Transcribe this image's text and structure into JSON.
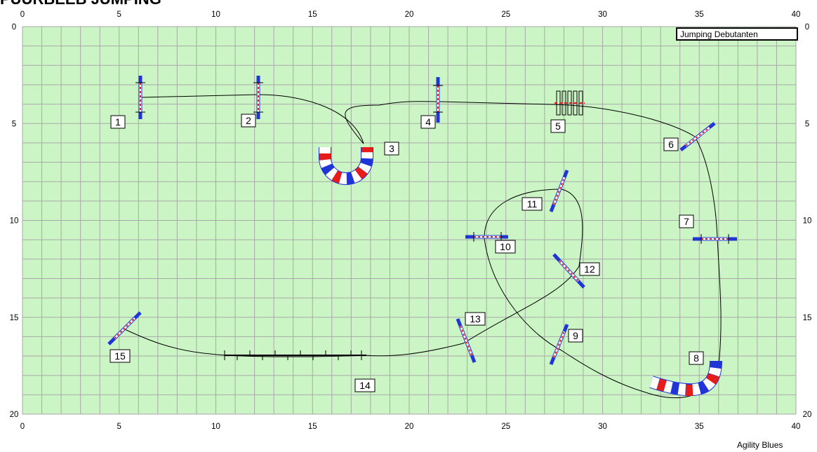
{
  "page": {
    "title": "PUURBEEB JUMPING",
    "footer": "Agility Blues",
    "course_label": "Jumping Debutanten"
  },
  "axes": {
    "x_ticks": [
      "0",
      "5",
      "10",
      "15",
      "20",
      "25",
      "30",
      "35",
      "40"
    ],
    "y_ticks": [
      "0",
      "5",
      "10",
      "15",
      "20"
    ],
    "x_range": [
      0,
      40
    ],
    "y_range": [
      0,
      20
    ]
  },
  "colors": {
    "field": "#ccf5c5",
    "grid": "#a8a8a8",
    "jump_blue": "#1f35d8",
    "jump_red": "#e81b1b",
    "path": "#000000"
  },
  "obstacles": [
    {
      "number": "1",
      "type": "jump"
    },
    {
      "number": "2",
      "type": "jump"
    },
    {
      "number": "3",
      "type": "tunnel"
    },
    {
      "number": "4",
      "type": "jump"
    },
    {
      "number": "5",
      "type": "tire"
    },
    {
      "number": "6",
      "type": "jump"
    },
    {
      "number": "7",
      "type": "jump"
    },
    {
      "number": "8",
      "type": "tunnel"
    },
    {
      "number": "9",
      "type": "jump"
    },
    {
      "number": "10",
      "type": "jump"
    },
    {
      "number": "11",
      "type": "jump"
    },
    {
      "number": "12",
      "type": "jump"
    },
    {
      "number": "13",
      "type": "jump"
    },
    {
      "number": "14",
      "type": "dogwalk"
    },
    {
      "number": "15",
      "type": "jump"
    }
  ]
}
